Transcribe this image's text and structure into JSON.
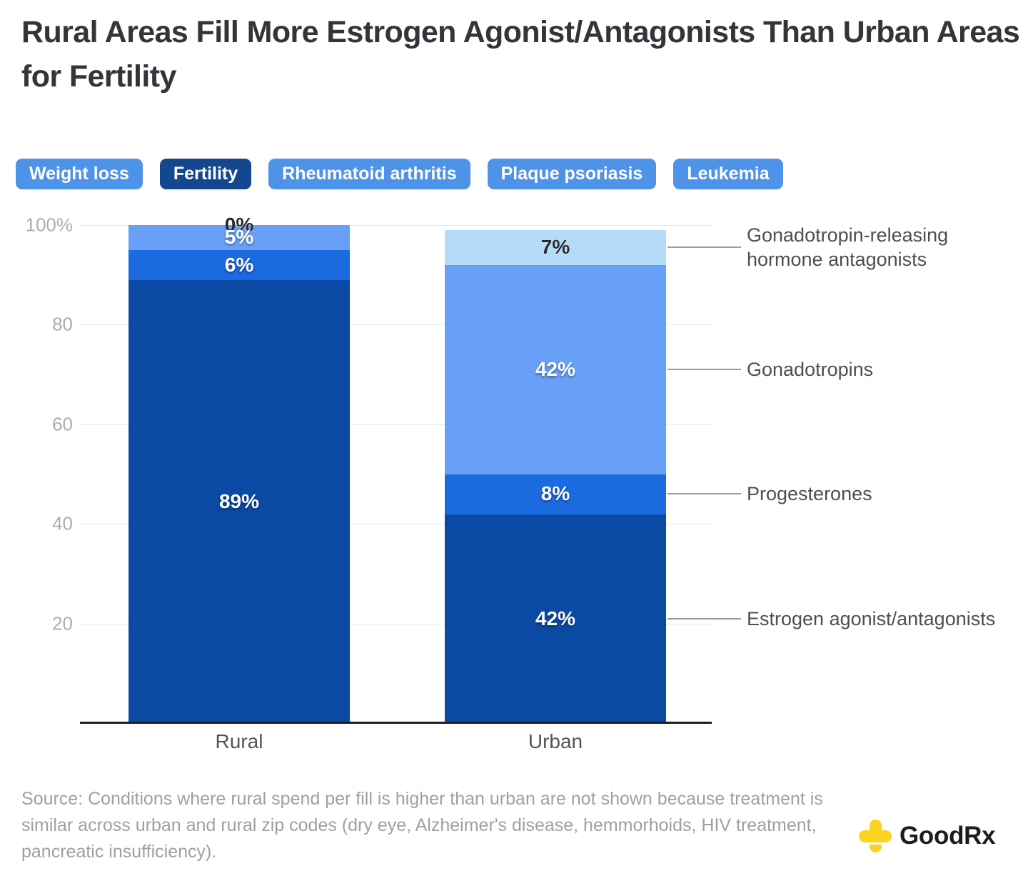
{
  "title": "Rural Areas Fill More Estrogen Agonist/Antagonists Than Urban Areas for Fertility",
  "tabs": [
    {
      "label": "Weight loss",
      "selected": false
    },
    {
      "label": "Fertility",
      "selected": true
    },
    {
      "label": "Rheumatoid arthritis",
      "selected": false
    },
    {
      "label": "Plaque psoriasis",
      "selected": false
    },
    {
      "label": "Leukemia",
      "selected": false
    }
  ],
  "chart_data": {
    "type": "bar",
    "stacked": true,
    "categories": [
      "Rural",
      "Urban"
    ],
    "series": [
      {
        "name": "Gonadotropin-releasing hormone antagonists",
        "color": "#b4dcf9",
        "label_color": "dark",
        "values": [
          0,
          7
        ]
      },
      {
        "name": "Gonadotropins",
        "color": "#69a0f7",
        "label_color": "white",
        "values": [
          5,
          42
        ]
      },
      {
        "name": "Progesterones",
        "color": "#1b6ae0",
        "label_color": "white",
        "values": [
          6,
          8
        ]
      },
      {
        "name": "Estrogen agonist/antagonists",
        "color": "#0b4aa4",
        "label_color": "white",
        "values": [
          89,
          42
        ]
      }
    ],
    "y_ticks": [
      {
        "value": 100,
        "label": "100%"
      },
      {
        "value": 80,
        "label": "80"
      },
      {
        "value": 60,
        "label": "60"
      },
      {
        "value": 40,
        "label": "40"
      },
      {
        "value": 20,
        "label": "20"
      }
    ],
    "ylim": [
      0,
      100
    ],
    "value_suffix": "%",
    "grid": true,
    "legend_position": "right"
  },
  "source_text": "Source: Conditions where rural spend per fill is higher than urban are not shown because treatment is similar across urban and rural zip codes (dry eye, Alzheimer's disease, hemmorhoids, HIV treatment, pancreatic insufficiency).",
  "logo": {
    "good": "Good",
    "rx": "Rx"
  },
  "colors": {
    "tab": "#4f93e8",
    "tab_selected": "#14478f",
    "accent_yellow": "#fcd31e",
    "axis_line": "#1c1e21",
    "gridline": "#e8e9eb"
  }
}
